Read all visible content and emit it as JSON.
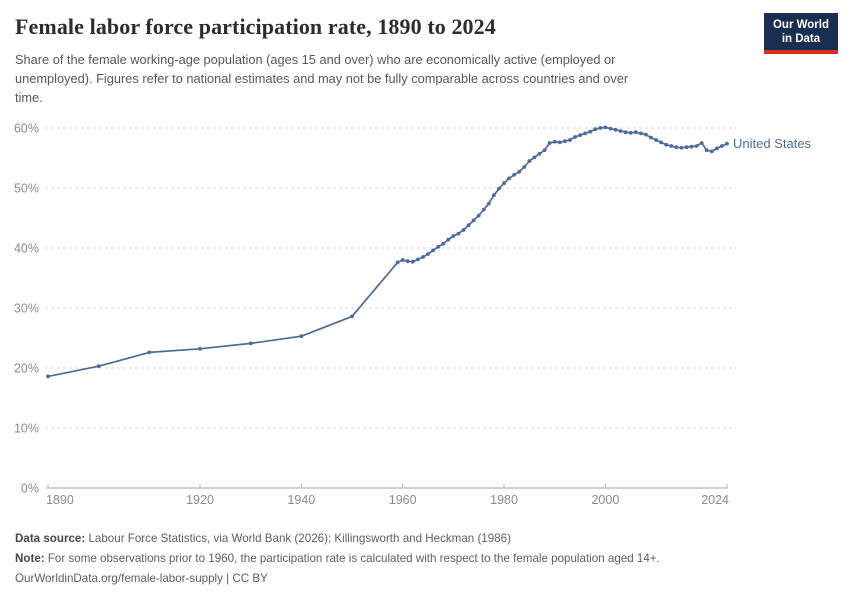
{
  "header": {
    "title": "Female labor force participation rate, 1890 to 2024",
    "subtitle_lines": [
      "Share of the female working-age population (ages 15 and over) who are economically active (employed or",
      "unemployed). Figures refer to national estimates and may not be fully comparable across countries and over",
      "time."
    ],
    "logo": {
      "line1": "Our World",
      "line2": "in Data"
    }
  },
  "chart_data": {
    "type": "line",
    "title": "Female labor force participation rate, 1890 to 2024",
    "xlabel": "",
    "ylabel": "",
    "xlim": [
      1890,
      2024
    ],
    "ylim": [
      0,
      60
    ],
    "x_ticks": [
      1890,
      1920,
      1940,
      1960,
      1980,
      2000,
      2024
    ],
    "y_ticks": [
      0,
      10,
      20,
      30,
      40,
      50,
      60
    ],
    "y_tick_suffix": "%",
    "grid": "horizontal-dashed",
    "legend_position": "end-of-line",
    "series": [
      {
        "name": "United States",
        "color": "#4C6A9C",
        "points": [
          [
            1890,
            18.6
          ],
          [
            1900,
            20.3
          ],
          [
            1910,
            22.6
          ],
          [
            1920,
            23.2
          ],
          [
            1930,
            24.1
          ],
          [
            1940,
            25.3
          ],
          [
            1950,
            28.6
          ],
          [
            1959,
            37.6
          ],
          [
            1960,
            38.0
          ],
          [
            1961,
            37.8
          ],
          [
            1962,
            37.7
          ],
          [
            1963,
            38.1
          ],
          [
            1964,
            38.5
          ],
          [
            1965,
            39.0
          ],
          [
            1966,
            39.6
          ],
          [
            1967,
            40.2
          ],
          [
            1968,
            40.7
          ],
          [
            1969,
            41.4
          ],
          [
            1970,
            42.0
          ],
          [
            1971,
            42.4
          ],
          [
            1972,
            43.0
          ],
          [
            1973,
            43.8
          ],
          [
            1974,
            44.6
          ],
          [
            1975,
            45.4
          ],
          [
            1976,
            46.4
          ],
          [
            1977,
            47.4
          ],
          [
            1978,
            48.8
          ],
          [
            1979,
            49.9
          ],
          [
            1980,
            50.8
          ],
          [
            1981,
            51.6
          ],
          [
            1982,
            52.2
          ],
          [
            1983,
            52.7
          ],
          [
            1984,
            53.5
          ],
          [
            1985,
            54.5
          ],
          [
            1986,
            55.1
          ],
          [
            1987,
            55.7
          ],
          [
            1988,
            56.3
          ],
          [
            1989,
            57.5
          ],
          [
            1990,
            57.7
          ],
          [
            1991,
            57.6
          ],
          [
            1992,
            57.8
          ],
          [
            1993,
            58.0
          ],
          [
            1994,
            58.5
          ],
          [
            1995,
            58.8
          ],
          [
            1996,
            59.1
          ],
          [
            1997,
            59.4
          ],
          [
            1998,
            59.8
          ],
          [
            1999,
            60.0
          ],
          [
            2000,
            60.1
          ],
          [
            2001,
            59.9
          ],
          [
            2002,
            59.7
          ],
          [
            2003,
            59.5
          ],
          [
            2004,
            59.3
          ],
          [
            2005,
            59.2
          ],
          [
            2006,
            59.3
          ],
          [
            2007,
            59.1
          ],
          [
            2008,
            58.9
          ],
          [
            2009,
            58.4
          ],
          [
            2010,
            58.0
          ],
          [
            2011,
            57.6
          ],
          [
            2012,
            57.2
          ],
          [
            2013,
            57.0
          ],
          [
            2014,
            56.8
          ],
          [
            2015,
            56.7
          ],
          [
            2016,
            56.8
          ],
          [
            2017,
            56.9
          ],
          [
            2018,
            57.0
          ],
          [
            2019,
            57.5
          ],
          [
            2020,
            56.3
          ],
          [
            2021,
            56.1
          ],
          [
            2022,
            56.6
          ],
          [
            2023,
            57.0
          ],
          [
            2024,
            57.4
          ]
        ]
      }
    ]
  },
  "colors": {
    "series_blue": "#4C6A9C",
    "grid": "#dadada",
    "axis": "#a6a6a6",
    "tick_label": "#8c8c8c",
    "logo_bg": "#1A2E52",
    "logo_red": "#D62E22"
  },
  "footer": {
    "source_label": "Data source:",
    "source_text": " Labour Force Statistics, via World Bank (2026); Killingsworth and Heckman (1986)",
    "note_label": "Note:",
    "note_text": " For some observations prior to 1960, the participation rate is calculated with respect to the female population aged 14+.",
    "link_text": "OurWorldinData.org/female-labor-supply | CC BY"
  }
}
